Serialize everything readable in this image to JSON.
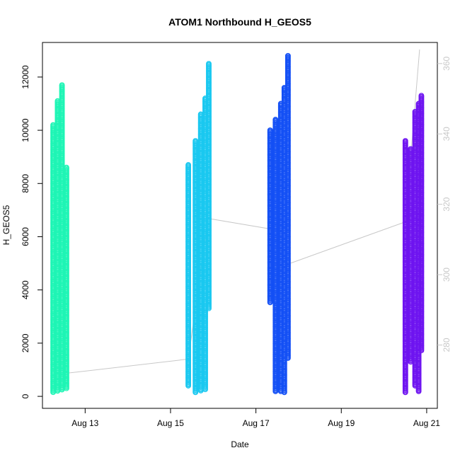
{
  "chart_data": {
    "type": "scatter",
    "title": "ATOM1 Northbound H_GEOS5",
    "xlabel": "Date",
    "ylabel": "H_GEOS5",
    "x_ticks": [
      "Aug 13",
      "Aug 15",
      "Aug 17",
      "Aug 19",
      "Aug 21"
    ],
    "y_ticks": [
      "0",
      "2000",
      "4000",
      "6000",
      "8000",
      "10000",
      "12000"
    ],
    "y2_ticks": [
      "280",
      "300",
      "320",
      "340",
      "360"
    ],
    "xlim": [
      "2016-08-12T00:00",
      "2016-08-21T06:00"
    ],
    "ylim": [
      -450,
      13300
    ],
    "y2lim": [
      262,
      366
    ],
    "grid": false,
    "series": [
      {
        "color": "#1EF5B5",
        "points": [
          {
            "x": "2016-08-12T06:00",
            "y_range": [
              150,
              10200
            ]
          },
          {
            "x": "2016-08-12T08:30",
            "y_range": [
              200,
              11100
            ]
          },
          {
            "x": "2016-08-12T11:00",
            "y_range": [
              250,
              11700
            ]
          },
          {
            "x": "2016-08-12T13:30",
            "y_range": [
              300,
              8600
            ]
          }
        ]
      },
      {
        "color": "#1AC8F0",
        "points": [
          {
            "x": "2016-08-15T10:00",
            "y_range": [
              400,
              8700
            ]
          },
          {
            "x": "2016-08-15T14:00",
            "y_range": [
              150,
              9600
            ]
          },
          {
            "x": "2016-08-15T17:00",
            "y_range": [
              200,
              10600
            ]
          },
          {
            "x": "2016-08-15T19:30",
            "y_range": [
              250,
              11200
            ]
          },
          {
            "x": "2016-08-15T21:30",
            "y_range": [
              3300,
              12500
            ]
          }
        ]
      },
      {
        "color": "#1450F5",
        "points": [
          {
            "x": "2016-08-17T08:00",
            "y_range": [
              3500,
              10000
            ]
          },
          {
            "x": "2016-08-17T11:00",
            "y_range": [
              150,
              10400
            ]
          },
          {
            "x": "2016-08-17T14:00",
            "y_range": [
              150,
              11000
            ]
          },
          {
            "x": "2016-08-17T16:00",
            "y_range": [
              150,
              11600
            ]
          },
          {
            "x": "2016-08-17T18:00",
            "y_range": [
              1400,
              12800
            ]
          }
        ]
      },
      {
        "color": "#6E14F0",
        "points": [
          {
            "x": "2016-08-20T12:00",
            "y_range": [
              150,
              9600
            ]
          },
          {
            "x": "2016-08-20T15:00",
            "y_range": [
              1300,
              9300
            ]
          },
          {
            "x": "2016-08-20T17:30",
            "y_range": [
              400,
              10700
            ]
          },
          {
            "x": "2016-08-20T19:30",
            "y_range": [
              150,
              11000
            ]
          },
          {
            "x": "2016-08-20T21:00",
            "y_range": [
              1700,
              11300
            ]
          }
        ]
      }
    ],
    "secondary_line": {
      "color": "#c8c8c8",
      "points": [
        {
          "x": "2016-08-12T14:00",
          "y2": 272
        },
        {
          "x": "2016-08-15T10:00",
          "y2": 276
        },
        {
          "x": "2016-08-15T21:00",
          "y2": 316
        },
        {
          "x": "2016-08-17T08:00",
          "y2": 313
        },
        {
          "x": "2016-08-17T18:00",
          "y2": 303
        },
        {
          "x": "2016-08-20T12:00",
          "y2": 315
        },
        {
          "x": "2016-08-20T20:00",
          "y2": 364
        }
      ]
    }
  }
}
